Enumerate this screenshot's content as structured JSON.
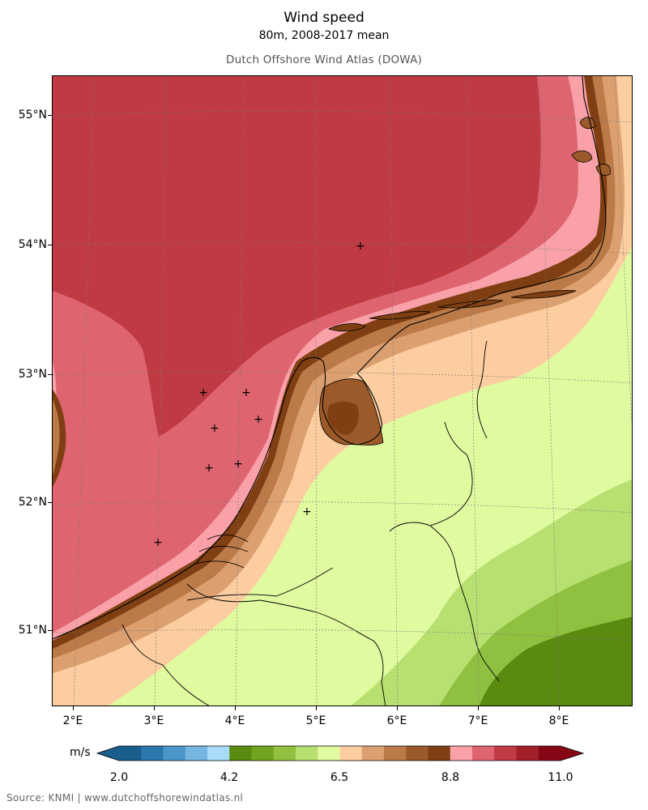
{
  "title": "Wind speed",
  "subtitle": "80m, 2008-2017 mean",
  "atlas_name": "Dutch Offshore Wind Atlas (DOWA)",
  "source": "Source: KNMI | www.dutchoffshorewindatlas.nl",
  "map": {
    "latitude_labels": [
      "55°N",
      "54°N",
      "53°N",
      "52°N",
      "51°N"
    ],
    "longitude_labels": [
      "2°E",
      "3°E",
      "4°E",
      "5°E",
      "6°E",
      "7°E",
      "8°E"
    ],
    "markers": "+",
    "colors": {
      "sea_far": "#c03a43",
      "sea_mid": "#de6470",
      "sea_near": "#f9a0a8",
      "coast": "#7f3f13",
      "land_dark": "#9c5a2a",
      "land_brown": "#bc7a48",
      "land_tan": "#dca070",
      "land_peach": "#fccda0",
      "land_lime": "#e0faa0",
      "land_green": "#b8e070",
      "land_mid_green": "#90c040",
      "land_dark_green": "#5a8a10"
    }
  },
  "colorbar": {
    "unit": "m/s",
    "tick_labels": [
      "2.0",
      "4.2",
      "6.5",
      "8.8",
      "11.0"
    ],
    "colors": [
      "#1a5e8e",
      "#2a78ae",
      "#4a96c8",
      "#74b6e0",
      "#a8dcf8",
      "#5a8a10",
      "#72a420",
      "#94c040",
      "#b8e070",
      "#e0faa0",
      "#fccda0",
      "#dca070",
      "#bc7a48",
      "#9c5a2a",
      "#7f3f13",
      "#f9a0a8",
      "#de6470",
      "#c03a43",
      "#a21f2a",
      "#850716"
    ]
  }
}
